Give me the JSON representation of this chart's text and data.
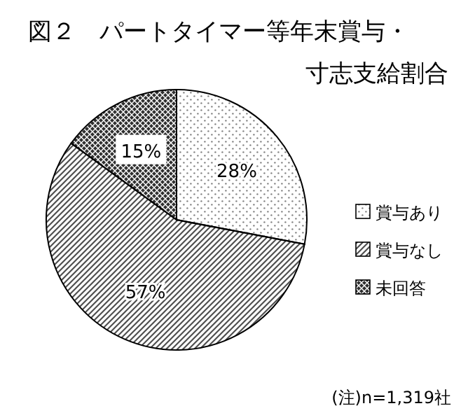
{
  "chart_data": {
    "type": "pie",
    "title": "図２　パートタイマー等年末賞与・寸志支給割合",
    "categories": [
      "賞与あり",
      "賞与なし",
      "未回答"
    ],
    "values": [
      28,
      57,
      15
    ],
    "value_labels": [
      "28%",
      "57%",
      "15%"
    ],
    "colors": [
      "#808080",
      "#505050",
      "#303030"
    ],
    "legend": "right",
    "annotations": [
      "(注)n=1,319社"
    ]
  }
}
